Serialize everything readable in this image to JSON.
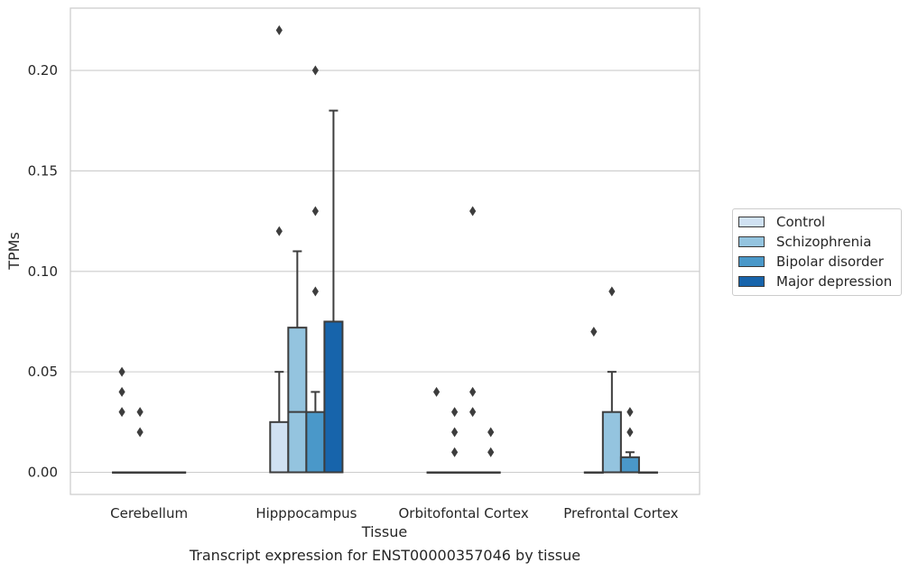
{
  "chart_data": {
    "type": "box",
    "title": "",
    "caption": "Transcript expression for ENST00000357046 by tissue",
    "xlabel": "Tissue",
    "ylabel": "TPMs",
    "ylim": [
      -0.011,
      0.231
    ],
    "yticks": [
      "0.00",
      "0.05",
      "0.10",
      "0.15",
      "0.20"
    ],
    "grid": true,
    "legend_position": "right",
    "categories": [
      "Cerebellum",
      "Hipppocampus",
      "Orbitofontal Cortex",
      "Prefrontal Cortex"
    ],
    "series": [
      {
        "name": "Control",
        "color": "#d0e1f2",
        "boxes": [
          {
            "q1": 0,
            "median": 0,
            "q3": 0,
            "whisker_low": 0,
            "whisker_high": 0,
            "outliers": [
              0.05,
              0.04,
              0.03
            ]
          },
          {
            "q1": 0,
            "median": 0,
            "q3": 0.025,
            "whisker_low": 0,
            "whisker_high": 0.05,
            "outliers": [
              0.22,
              0.12
            ]
          },
          {
            "q1": 0,
            "median": 0,
            "q3": 0,
            "whisker_low": 0,
            "whisker_high": 0,
            "outliers": [
              0.04
            ]
          },
          {
            "q1": 0,
            "median": 0,
            "q3": 0,
            "whisker_low": 0,
            "whisker_high": 0,
            "outliers": [
              0.07
            ]
          }
        ]
      },
      {
        "name": "Schizophrenia",
        "color": "#94c4df",
        "boxes": [
          {
            "q1": 0,
            "median": 0,
            "q3": 0,
            "whisker_low": 0,
            "whisker_high": 0,
            "outliers": [
              0.03,
              0.02
            ]
          },
          {
            "q1": 0,
            "median": 0.03,
            "q3": 0.072,
            "whisker_low": 0,
            "whisker_high": 0.11,
            "outliers": []
          },
          {
            "q1": 0,
            "median": 0,
            "q3": 0,
            "whisker_low": 0,
            "whisker_high": 0,
            "outliers": [
              0.03,
              0.02,
              0.01
            ]
          },
          {
            "q1": 0,
            "median": 0,
            "q3": 0.03,
            "whisker_low": 0,
            "whisker_high": 0.05,
            "outliers": [
              0.09
            ]
          }
        ]
      },
      {
        "name": "Bipolar disorder",
        "color": "#4a98c9",
        "boxes": [
          {
            "q1": 0,
            "median": 0,
            "q3": 0,
            "whisker_low": 0,
            "whisker_high": 0,
            "outliers": []
          },
          {
            "q1": 0,
            "median": 0,
            "q3": 0.03,
            "whisker_low": 0,
            "whisker_high": 0.04,
            "outliers": [
              0.2,
              0.13,
              0.09
            ]
          },
          {
            "q1": 0,
            "median": 0,
            "q3": 0,
            "whisker_low": 0,
            "whisker_high": 0,
            "outliers": [
              0.13,
              0.04,
              0.03
            ]
          },
          {
            "q1": 0,
            "median": 0,
            "q3": 0.0075,
            "whisker_low": 0,
            "whisker_high": 0.01,
            "outliers": [
              0.03,
              0.02
            ]
          }
        ]
      },
      {
        "name": "Major depression",
        "color": "#1764ab",
        "boxes": [
          {
            "q1": 0,
            "median": 0,
            "q3": 0,
            "whisker_low": 0,
            "whisker_high": 0,
            "outliers": []
          },
          {
            "q1": 0,
            "median": 0,
            "q3": 0.075,
            "whisker_low": 0,
            "whisker_high": 0.18,
            "outliers": []
          },
          {
            "q1": 0,
            "median": 0,
            "q3": 0,
            "whisker_low": 0,
            "whisker_high": 0,
            "outliers": [
              0.02,
              0.01
            ]
          },
          {
            "q1": 0,
            "median": 0,
            "q3": 0,
            "whisker_low": 0,
            "whisker_high": 0,
            "outliers": []
          }
        ]
      }
    ]
  }
}
